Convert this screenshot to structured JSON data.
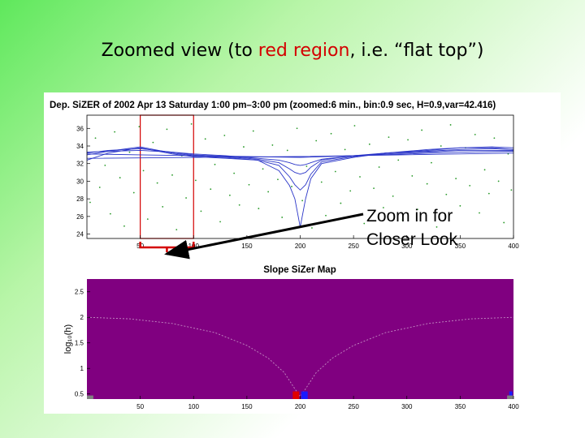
{
  "slide": {
    "title_pre": "Zoomed view (to ",
    "title_highlight": "red region",
    "title_post": ", i.e. “flat top”)",
    "highlight_color": "#d40000",
    "callout_line1": "Zoom in for",
    "callout_line2": "Closer Look"
  },
  "chart_data": [
    {
      "type": "line",
      "title": "Dep. SiZER of 2002 Apr 13 Saturday 1:00 pm–3:00 pm (zoomed:6 min., bin:0.9 sec, H=0.9,var=42.416)",
      "xlim": [
        0,
        400
      ],
      "ylim": [
        23.5,
        37.5
      ],
      "x_ticks": [
        50,
        100,
        150,
        200,
        250,
        300,
        350,
        400
      ],
      "y_ticks": [
        24,
        26,
        28,
        30,
        32,
        34,
        36
      ],
      "grid": false,
      "highlight_region": {
        "x": [
          50,
          100
        ],
        "color": "#d40000"
      },
      "scatter_color": "#2a9a2a",
      "curve_color": "#2a35c8",
      "smooth_family": [
        {
          "x": [
            0,
            20,
            50,
            80,
            100,
            130,
            160,
            180,
            190,
            195,
            200,
            205,
            210,
            220,
            250,
            280,
            320,
            350,
            380,
            400
          ],
          "y": [
            32.4,
            33.2,
            33.8,
            33.1,
            32.8,
            32.6,
            32.4,
            31.2,
            29.5,
            28.0,
            24.8,
            28.0,
            30.3,
            32.0,
            32.7,
            33.2,
            33.6,
            33.8,
            33.9,
            33.8
          ]
        },
        {
          "x": [
            0,
            20,
            50,
            80,
            100,
            130,
            160,
            180,
            190,
            195,
            200,
            205,
            210,
            220,
            250,
            280,
            320,
            350,
            380,
            400
          ],
          "y": [
            33.0,
            33.4,
            33.9,
            33.2,
            32.9,
            32.7,
            32.4,
            31.8,
            30.5,
            29.6,
            29.0,
            29.6,
            30.8,
            32.2,
            32.8,
            33.2,
            33.5,
            33.8,
            33.8,
            33.6
          ]
        },
        {
          "x": [
            0,
            20,
            50,
            80,
            100,
            130,
            160,
            180,
            190,
            195,
            200,
            205,
            210,
            220,
            250,
            280,
            320,
            350,
            380,
            400
          ],
          "y": [
            33.2,
            33.5,
            33.7,
            33.3,
            33.0,
            32.8,
            32.5,
            32.1,
            31.4,
            31.0,
            30.8,
            31.0,
            31.6,
            32.4,
            32.9,
            33.2,
            33.4,
            33.6,
            33.7,
            33.6
          ]
        },
        {
          "x": [
            0,
            20,
            50,
            80,
            100,
            130,
            160,
            180,
            190,
            195,
            200,
            205,
            210,
            220,
            250,
            280,
            320,
            350,
            380,
            400
          ],
          "y": [
            33.3,
            33.4,
            33.5,
            33.3,
            33.1,
            32.9,
            32.6,
            32.4,
            32.1,
            31.9,
            31.8,
            31.9,
            32.1,
            32.5,
            32.9,
            33.1,
            33.3,
            33.5,
            33.5,
            33.5
          ]
        },
        {
          "x": [
            0,
            50,
            100,
            150,
            200,
            250,
            300,
            350,
            400
          ],
          "y": [
            33.1,
            33.0,
            32.9,
            32.8,
            32.7,
            32.9,
            33.1,
            33.3,
            33.4
          ]
        },
        {
          "x": [
            0,
            200,
            400
          ],
          "y": [
            32.6,
            32.8,
            33.2
          ]
        }
      ],
      "scatter_points": [
        {
          "x": 3,
          "y": 27.6
        },
        {
          "x": 8,
          "y": 34.9
        },
        {
          "x": 12,
          "y": 29.3
        },
        {
          "x": 17,
          "y": 31.8
        },
        {
          "x": 22,
          "y": 26.3
        },
        {
          "x": 26,
          "y": 35.6
        },
        {
          "x": 31,
          "y": 30.4
        },
        {
          "x": 35,
          "y": 24.9
        },
        {
          "x": 40,
          "y": 33.3
        },
        {
          "x": 44,
          "y": 28.7
        },
        {
          "x": 49,
          "y": 36.2
        },
        {
          "x": 53,
          "y": 31.2
        },
        {
          "x": 57,
          "y": 25.7
        },
        {
          "x": 62,
          "y": 34.4
        },
        {
          "x": 66,
          "y": 29.8
        },
        {
          "x": 71,
          "y": 27.1
        },
        {
          "x": 75,
          "y": 35.9
        },
        {
          "x": 80,
          "y": 30.7
        },
        {
          "x": 84,
          "y": 24.5
        },
        {
          "x": 89,
          "y": 32.9
        },
        {
          "x": 93,
          "y": 28.1
        },
        {
          "x": 98,
          "y": 36.5
        },
        {
          "x": 102,
          "y": 30.1
        },
        {
          "x": 107,
          "y": 26.6
        },
        {
          "x": 111,
          "y": 34.8
        },
        {
          "x": 116,
          "y": 29.1
        },
        {
          "x": 120,
          "y": 31.9
        },
        {
          "x": 125,
          "y": 25.4
        },
        {
          "x": 129,
          "y": 35.2
        },
        {
          "x": 134,
          "y": 28.4
        },
        {
          "x": 138,
          "y": 30.9
        },
        {
          "x": 143,
          "y": 27.3
        },
        {
          "x": 147,
          "y": 33.9
        },
        {
          "x": 152,
          "y": 29.6
        },
        {
          "x": 156,
          "y": 35.7
        },
        {
          "x": 161,
          "y": 26.9
        },
        {
          "x": 165,
          "y": 31.4
        },
        {
          "x": 170,
          "y": 28.8
        },
        {
          "x": 174,
          "y": 34.1
        },
        {
          "x": 179,
          "y": 30.2
        },
        {
          "x": 183,
          "y": 25.9
        },
        {
          "x": 188,
          "y": 33.5
        },
        {
          "x": 192,
          "y": 29.4
        },
        {
          "x": 197,
          "y": 36.0
        },
        {
          "x": 202,
          "y": 27.8
        },
        {
          "x": 206,
          "y": 31.7
        },
        {
          "x": 211,
          "y": 24.7
        },
        {
          "x": 215,
          "y": 34.6
        },
        {
          "x": 220,
          "y": 29.9
        },
        {
          "x": 224,
          "y": 26.1
        },
        {
          "x": 229,
          "y": 35.4
        },
        {
          "x": 233,
          "y": 31.1
        },
        {
          "x": 238,
          "y": 27.5
        },
        {
          "x": 242,
          "y": 33.6
        },
        {
          "x": 247,
          "y": 28.9
        },
        {
          "x": 251,
          "y": 36.3
        },
        {
          "x": 256,
          "y": 30.5
        },
        {
          "x": 260,
          "y": 25.2
        },
        {
          "x": 265,
          "y": 34.2
        },
        {
          "x": 269,
          "y": 29.2
        },
        {
          "x": 274,
          "y": 31.6
        },
        {
          "x": 278,
          "y": 27.0
        },
        {
          "x": 283,
          "y": 35.0
        },
        {
          "x": 287,
          "y": 28.3
        },
        {
          "x": 292,
          "y": 32.4
        },
        {
          "x": 296,
          "y": 25.6
        },
        {
          "x": 301,
          "y": 34.7
        },
        {
          "x": 305,
          "y": 30.6
        },
        {
          "x": 310,
          "y": 26.8
        },
        {
          "x": 314,
          "y": 35.8
        },
        {
          "x": 319,
          "y": 29.7
        },
        {
          "x": 323,
          "y": 32.1
        },
        {
          "x": 328,
          "y": 24.8
        },
        {
          "x": 332,
          "y": 34.0
        },
        {
          "x": 337,
          "y": 28.5
        },
        {
          "x": 341,
          "y": 36.4
        },
        {
          "x": 346,
          "y": 30.3
        },
        {
          "x": 350,
          "y": 27.2
        },
        {
          "x": 355,
          "y": 33.8
        },
        {
          "x": 359,
          "y": 29.5
        },
        {
          "x": 364,
          "y": 35.3
        },
        {
          "x": 368,
          "y": 26.4
        },
        {
          "x": 373,
          "y": 31.3
        },
        {
          "x": 377,
          "y": 28.6
        },
        {
          "x": 382,
          "y": 34.9
        },
        {
          "x": 386,
          "y": 30.0
        },
        {
          "x": 391,
          "y": 25.3
        },
        {
          "x": 395,
          "y": 33.1
        },
        {
          "x": 398,
          "y": 29.0
        }
      ]
    },
    {
      "type": "heatmap",
      "title": "Slope SiZer Map",
      "ylabel": "log₁₀(h)",
      "xlim": [
        0,
        400
      ],
      "ylim": [
        0.4,
        2.75
      ],
      "x_ticks": [
        50,
        100,
        150,
        200,
        250,
        300,
        350,
        400
      ],
      "y_ticks": [
        0.5,
        1,
        1.5,
        2,
        2.5
      ],
      "grid": false,
      "colors": {
        "insignificant": "#800080",
        "decreasing": "#e00000",
        "increasing": "#1a1aff",
        "sparse": "#808080"
      },
      "cells": [
        {
          "x": [
            193,
            199
          ],
          "y": [
            0.4,
            0.55
          ],
          "class": "decreasing"
        },
        {
          "x": [
            201,
            207
          ],
          "y": [
            0.4,
            0.55
          ],
          "class": "increasing"
        },
        {
          "x": [
            396,
            399
          ],
          "y": [
            0.4,
            0.55
          ],
          "class": "increasing"
        },
        {
          "x": [
            0,
            6
          ],
          "y": [
            0.4,
            0.47
          ],
          "class": "sparse"
        },
        {
          "x": [
            394,
            400
          ],
          "y": [
            0.4,
            0.47
          ],
          "class": "sparse"
        }
      ],
      "window_boundary": [
        {
          "x": 0,
          "y": 2.0
        },
        {
          "x": 40,
          "y": 1.97
        },
        {
          "x": 80,
          "y": 1.88
        },
        {
          "x": 120,
          "y": 1.7
        },
        {
          "x": 150,
          "y": 1.45
        },
        {
          "x": 170,
          "y": 1.2
        },
        {
          "x": 185,
          "y": 0.92
        },
        {
          "x": 195,
          "y": 0.6
        },
        {
          "x": 200,
          "y": 0.45
        },
        {
          "x": 205,
          "y": 0.6
        },
        {
          "x": 215,
          "y": 0.92
        },
        {
          "x": 230,
          "y": 1.2
        },
        {
          "x": 250,
          "y": 1.45
        },
        {
          "x": 280,
          "y": 1.7
        },
        {
          "x": 320,
          "y": 1.88
        },
        {
          "x": 360,
          "y": 1.97
        },
        {
          "x": 400,
          "y": 2.0
        }
      ]
    }
  ]
}
